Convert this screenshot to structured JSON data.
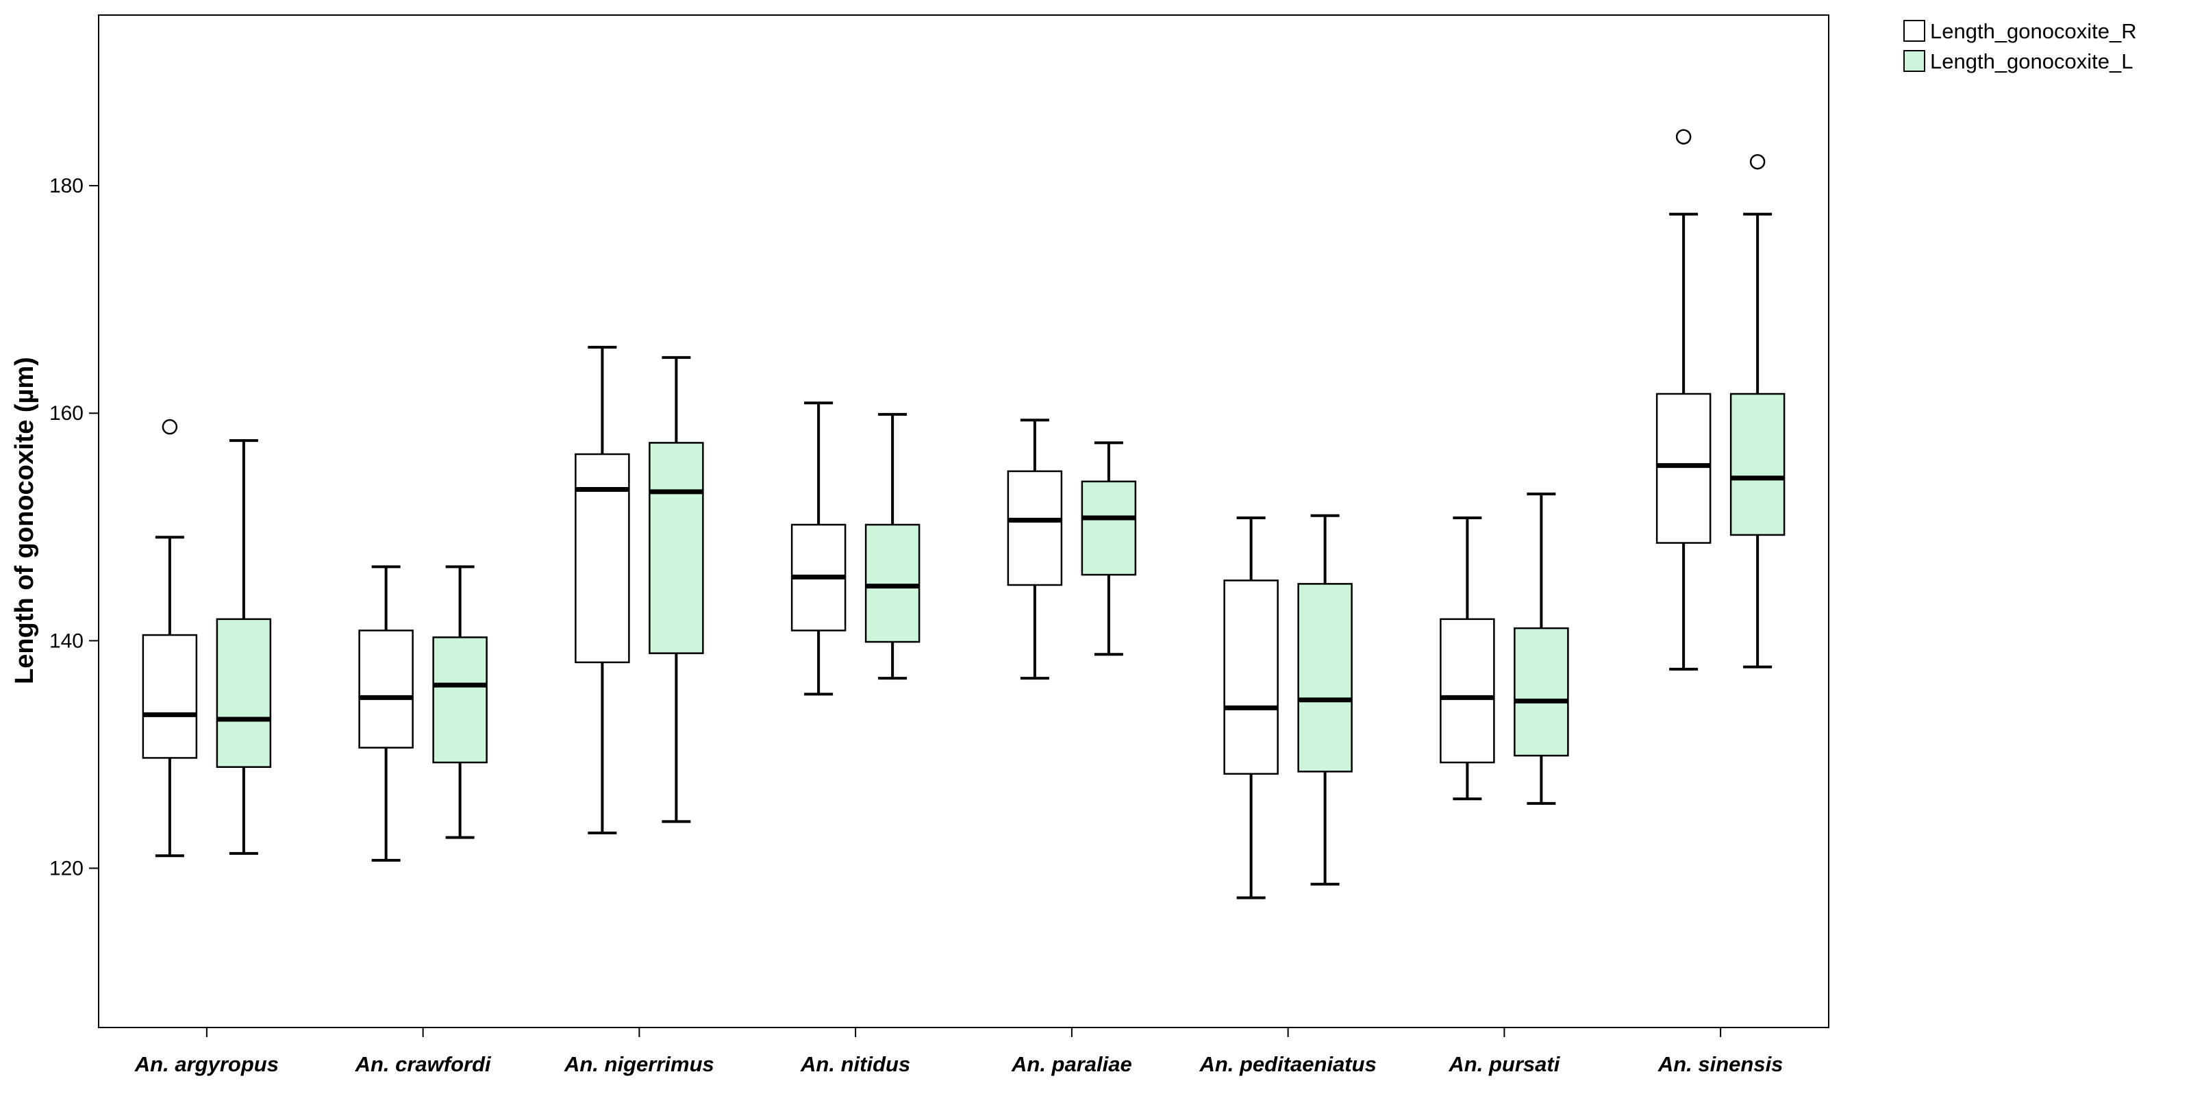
{
  "chart_data": {
    "type": "boxplot",
    "title": "",
    "xlabel": "",
    "ylabel": "Length of gonocoxite (µm)",
    "ylim": [
      106,
      195
    ],
    "yticks": [
      120,
      140,
      160,
      180
    ],
    "grid": false,
    "legend_position": "top-right-outside",
    "categories": [
      "An. argyropus",
      "An. crawfordi",
      "An. nigerrimus",
      "An. nitidus",
      "An. paraliae",
      "An. peditaeniatus",
      "An. pursati",
      "An. sinensis"
    ],
    "series": [
      {
        "name": "Length_gonocoxite_R",
        "color": "#ffffff",
        "boxes": [
          {
            "whisker_low": 121.1,
            "q1": 129.7,
            "median": 133.5,
            "q3": 140.5,
            "whisker_high": 149.1,
            "outliers": [
              158.8
            ]
          },
          {
            "whisker_low": 120.7,
            "q1": 130.6,
            "median": 135.0,
            "q3": 140.9,
            "whisker_high": 146.5,
            "outliers": []
          },
          {
            "whisker_low": 123.1,
            "q1": 138.1,
            "median": 153.3,
            "q3": 156.4,
            "whisker_high": 165.8,
            "outliers": []
          },
          {
            "whisker_low": 135.3,
            "q1": 140.9,
            "median": 145.6,
            "q3": 150.2,
            "whisker_high": 160.9,
            "outliers": []
          },
          {
            "whisker_low": 136.7,
            "q1": 144.9,
            "median": 150.6,
            "q3": 154.9,
            "whisker_high": 159.4,
            "outliers": []
          },
          {
            "whisker_low": 117.4,
            "q1": 128.3,
            "median": 134.1,
            "q3": 145.3,
            "whisker_high": 150.8,
            "outliers": []
          },
          {
            "whisker_low": 126.1,
            "q1": 129.3,
            "median": 135.0,
            "q3": 141.9,
            "whisker_high": 150.8,
            "outliers": []
          },
          {
            "whisker_low": 137.5,
            "q1": 148.6,
            "median": 155.4,
            "q3": 161.7,
            "whisker_high": 177.5,
            "outliers": [
              184.3
            ]
          }
        ]
      },
      {
        "name": "Length_gonocoxite_L",
        "color": "#ccf5dc",
        "boxes": [
          {
            "whisker_low": 121.3,
            "q1": 128.9,
            "median": 133.1,
            "q3": 141.9,
            "whisker_high": 157.6,
            "outliers": []
          },
          {
            "whisker_low": 122.7,
            "q1": 129.3,
            "median": 136.1,
            "q3": 140.3,
            "whisker_high": 146.5,
            "outliers": []
          },
          {
            "whisker_low": 124.1,
            "q1": 138.9,
            "median": 153.1,
            "q3": 157.4,
            "whisker_high": 164.9,
            "outliers": []
          },
          {
            "whisker_low": 136.7,
            "q1": 139.9,
            "median": 144.8,
            "q3": 150.2,
            "whisker_high": 159.9,
            "outliers": []
          },
          {
            "whisker_low": 138.8,
            "q1": 145.8,
            "median": 150.8,
            "q3": 154.0,
            "whisker_high": 157.4,
            "outliers": []
          },
          {
            "whisker_low": 118.6,
            "q1": 128.5,
            "median": 134.8,
            "q3": 145.0,
            "whisker_high": 151.0,
            "outliers": []
          },
          {
            "whisker_low": 125.7,
            "q1": 129.9,
            "median": 134.7,
            "q3": 141.1,
            "whisker_high": 152.9,
            "outliers": []
          },
          {
            "whisker_low": 137.7,
            "q1": 149.3,
            "median": 154.3,
            "q3": 161.7,
            "whisker_high": 177.5,
            "outliers": [
              182.1
            ]
          }
        ]
      }
    ]
  },
  "colors": {
    "box_r_fill": "#ffffff",
    "box_l_fill": "#ccf5dc",
    "stroke": "#000000"
  }
}
